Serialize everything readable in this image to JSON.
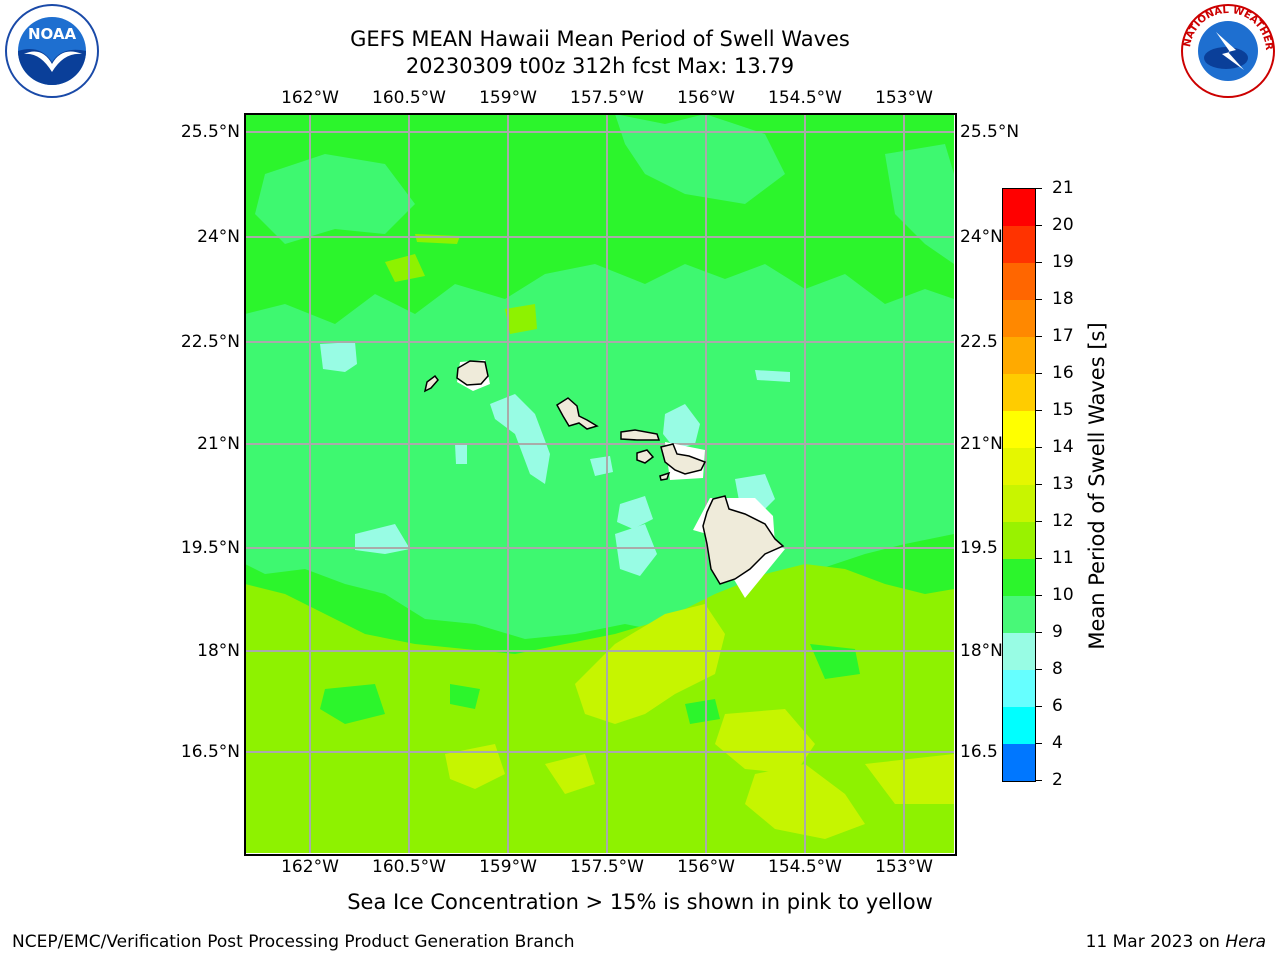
{
  "title": {
    "line1": "GEFS MEAN Hawaii Mean Period of Swell Waves",
    "line2": "20230309 t00z 312h fcst   Max: 13.79"
  },
  "axes": {
    "lon_labels": [
      "162°W",
      "160.5°W",
      "159°W",
      "157.5°W",
      "156°W",
      "154.5°W",
      "153°W"
    ],
    "lat_labels_left": [
      "25.5°N",
      "24°N",
      "22.5°N",
      "21°N",
      "19.5°N",
      "18°N",
      "16.5°N"
    ],
    "lat_labels_right": [
      "25.5°N",
      "24°N",
      "22.5",
      "21°N",
      "19.5",
      "18°N",
      "16.5"
    ]
  },
  "colorbar": {
    "label": "Mean Period of Swell Waves [s]",
    "ticks": [
      "21",
      "20",
      "19",
      "18",
      "17",
      "16",
      "15",
      "14",
      "13",
      "12",
      "11",
      "10",
      "9",
      "8",
      "6",
      "4",
      "2"
    ],
    "colors": [
      "#ff0000",
      "#ff3300",
      "#ff6600",
      "#ff8800",
      "#ffaa00",
      "#ffcc00",
      "#ffff00",
      "#e5f700",
      "#c8f500",
      "#99f200",
      "#2cf52c",
      "#48f878",
      "#98fce4",
      "#66ffff",
      "#00ffff",
      "#0077ff",
      "#0000ff"
    ]
  },
  "map_colors": {
    "c9_10": "#98fce4",
    "c10_11": "#3ef870",
    "c11_12": "#2cf52c",
    "c12_13": "#8ef200",
    "c13_14": "#c6f500",
    "land": "#efebda"
  },
  "caption": "Sea Ice Concentration > 15% is shown in pink to yellow",
  "credit": {
    "left": "NCEP/EMC/Verification Post Processing Product Generation Branch",
    "right_date": "11 Mar 2023 on ",
    "right_machine": "Hera"
  },
  "logos": {
    "noaa_text": "NOAA",
    "nws_text": "NATIONAL WEATHER SERVICE"
  }
}
